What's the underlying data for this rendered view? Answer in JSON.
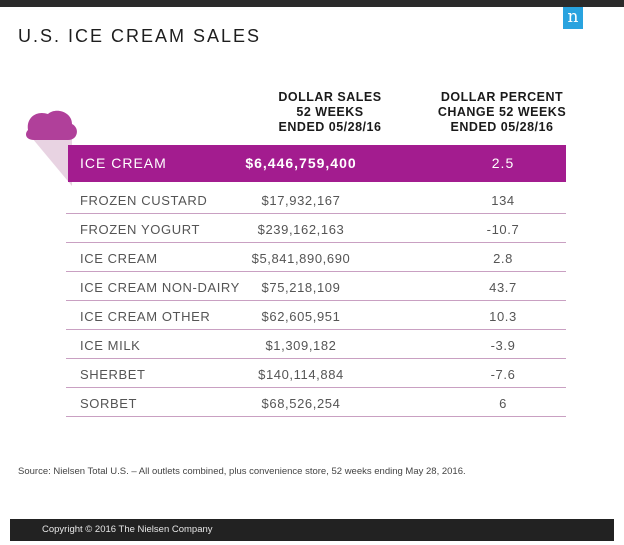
{
  "header": {
    "title": "U.S. ICE CREAM SALES",
    "logo_letter": "n",
    "columns": [
      "DOLLAR SALES\n52 WEEKS\nENDED 05/28/16",
      "DOLLAR PERCENT\nCHANGE 52 WEEKS\nENDED 05/28/16"
    ]
  },
  "highlight": {
    "label": "ICE CREAM",
    "sales": "$6,446,759,400",
    "pct": "2.5"
  },
  "chart_data": {
    "type": "table",
    "title": "U.S. ICE CREAM SALES",
    "columns": [
      "",
      "DOLLAR SALES 52 WEEKS ENDED 05/28/16",
      "DOLLAR PERCENT CHANGE 52 WEEKS ENDED 05/28/16"
    ],
    "rows": [
      [
        "FROZEN CUSTARD",
        "$17,932,167",
        "134"
      ],
      [
        "FROZEN YOGURT",
        "$239,162,163",
        "-10.7"
      ],
      [
        "ICE CREAM",
        "$5,841,890,690",
        "2.8"
      ],
      [
        "ICE CREAM NON-DAIRY",
        "$75,218,109",
        "43.7"
      ],
      [
        "ICE CREAM OTHER",
        "$62,605,951",
        "10.3"
      ],
      [
        "ICE MILK",
        "$1,309,182",
        "-3.9"
      ],
      [
        "SHERBET",
        "$140,114,884",
        "-7.6"
      ],
      [
        "SORBET",
        "$68,526,254",
        "6"
      ]
    ]
  },
  "source": "Source: Nielsen Total U.S. – All outlets combined, plus convenience store, 52 weeks ending May 28, 2016.",
  "footer": {
    "copyright": "Copyright © 2016 The Nielsen Company"
  },
  "colors": {
    "accent": "#a31c8f",
    "cone_scoop": "#b0409a",
    "cone": "#e8d3e2",
    "logo_bg": "#29a3df"
  }
}
